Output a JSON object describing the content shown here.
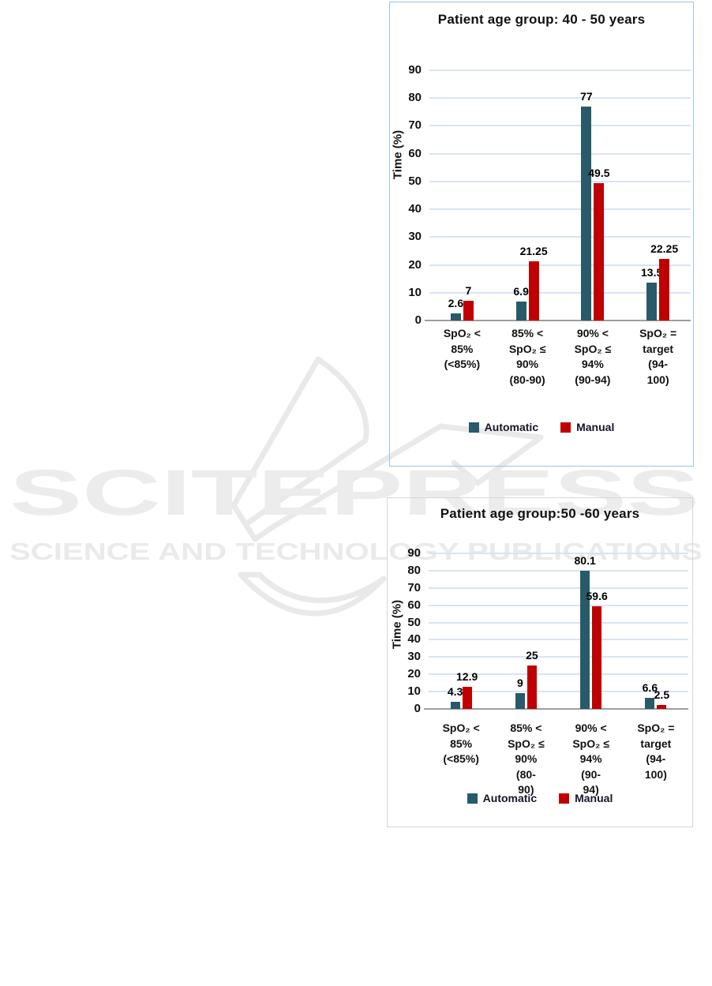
{
  "watermark": {
    "title": "SCITEPRESS",
    "subtitle": "SCIENCE AND TECHNOLOGY PUBLICATIONS"
  },
  "colors": {
    "automatic": "#285A69",
    "manual": "#C00000",
    "gridline": "#d9e3f3",
    "axis": "#9e9e9e",
    "chart1_border": "#9dc3e6",
    "chart2_border": "#d6d6d6",
    "watermark_fill": "#ececec",
    "watermark_stroke": "#e9e9e9"
  },
  "chart_data": [
    {
      "type": "bar",
      "title": "Patient age group: 40 - 50 years",
      "xlabel": "",
      "ylabel": "Time (%)",
      "ylim": [
        0,
        90
      ],
      "ystep": 10,
      "grid": true,
      "legend_position": "bottom",
      "categories": [
        "SpO₂ < 85% (<85%)",
        "85% < SpO₂ ≤ 90% (80-90)",
        "90% < SpO₂ ≤ 94% (90-94)",
        "SpO₂ = target (94-100)"
      ],
      "category_lines": [
        [
          "SpO₂ <",
          "85%",
          "(<85%)"
        ],
        [
          "85% <",
          "SpO₂ ≤",
          "90%",
          "(80-90)"
        ],
        [
          "90% <",
          "SpO₂ ≤",
          "94%",
          "(90-94)"
        ],
        [
          "SpO₂ =",
          "target",
          "(94-",
          "100)"
        ]
      ],
      "series": [
        {
          "name": "Automatic",
          "color": "#285A69",
          "values": [
            2.6,
            6.9,
            77,
            13.5
          ]
        },
        {
          "name": "Manual",
          "color": "#C00000",
          "values": [
            7,
            21.25,
            49.5,
            22.25
          ]
        }
      ]
    },
    {
      "type": "bar",
      "title": "Patient age group:50 -60 years",
      "xlabel": "",
      "ylabel": "Time (%)",
      "ylim": [
        0,
        90
      ],
      "ystep": 10,
      "grid": true,
      "legend_position": "bottom",
      "categories": [
        "SpO₂ < 85% (<85%)",
        "85% < SpO₂ ≤ 90% (80-90)",
        "90% < SpO₂ ≤ 94% (90-94)",
        "SpO₂ = target (94-100)"
      ],
      "category_lines": [
        [
          "SpO₂ <",
          "85%",
          "(<85%)"
        ],
        [
          "85% <",
          "SpO₂ ≤",
          "90%",
          "(80-",
          "90)"
        ],
        [
          "90% <",
          "SpO₂ ≤",
          "94%",
          "(90-",
          "94)"
        ],
        [
          "SpO₂ =",
          "target",
          "(94-",
          "100)"
        ]
      ],
      "series": [
        {
          "name": "Automatic",
          "color": "#285A69",
          "values": [
            4.3,
            9,
            80.1,
            6.6
          ]
        },
        {
          "name": "Manual",
          "color": "#C00000",
          "values": [
            12.9,
            25,
            59.6,
            2.5
          ]
        }
      ]
    }
  ]
}
